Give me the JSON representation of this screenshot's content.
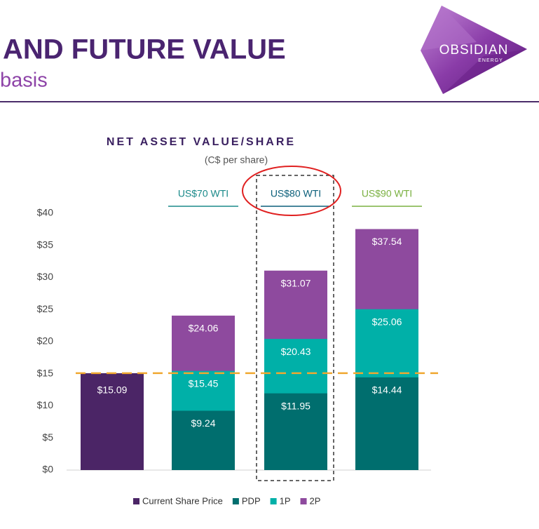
{
  "header": {
    "title": "AND FUTURE VALUE",
    "subtitle": "basis",
    "logo": {
      "name": "OBSIDIAN",
      "sub": "ENERGY"
    }
  },
  "chart_data": {
    "type": "bar",
    "overlapped": true,
    "title": "NET ASSET VALUE/SHARE",
    "subtitle": "(C$ per share)",
    "categories": [
      null,
      "US$70 WTI",
      "US$80 WTI",
      "US$90 WTI"
    ],
    "category_colors": [
      null,
      "#1a8a8a",
      "#0b5f7a",
      "#7ab040"
    ],
    "series": [
      {
        "name": "Current Share Price",
        "color": "#4b2566",
        "values": [
          15.09,
          null,
          null,
          null
        ],
        "value_labels": [
          "$15.09",
          null,
          null,
          null
        ]
      },
      {
        "name": "PDP",
        "color": "#006e6e",
        "values": [
          null,
          9.24,
          11.95,
          14.44
        ],
        "value_labels": [
          null,
          "$9.24",
          "$11.95",
          "$14.44"
        ]
      },
      {
        "name": "1P",
        "color": "#00b0a8",
        "values": [
          null,
          15.45,
          20.43,
          25.06
        ],
        "value_labels": [
          null,
          "$15.45",
          "$20.43",
          "$25.06"
        ]
      },
      {
        "name": "2P",
        "color": "#8e4a9e",
        "values": [
          null,
          24.06,
          31.07,
          37.54
        ],
        "value_labels": [
          null,
          "$24.06",
          "$31.07",
          "$37.54"
        ]
      }
    ],
    "ylim": [
      0,
      40
    ],
    "yticks": [
      {
        "value": 0,
        "label": "$0"
      },
      {
        "value": 5,
        "label": "$5"
      },
      {
        "value": 10,
        "label": "$10"
      },
      {
        "value": 15,
        "label": "$15"
      },
      {
        "value": 20,
        "label": "$20"
      },
      {
        "value": 25,
        "label": "$25"
      },
      {
        "value": 30,
        "label": "$30"
      },
      {
        "value": 35,
        "label": "$35"
      },
      {
        "value": 40,
        "label": "$40"
      }
    ],
    "reference_line_color": "#f0a830",
    "highlight_category": 2
  }
}
